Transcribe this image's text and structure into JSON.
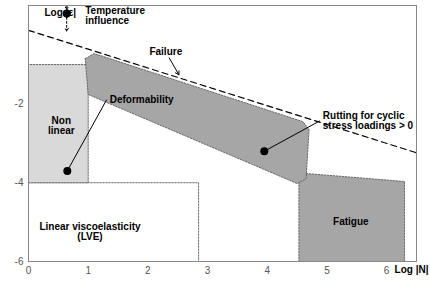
{
  "chart_data": {
    "type": "region",
    "x_label": "Log |N|",
    "y_label": "Log |ε|",
    "xlim": [
      0,
      6.5
    ],
    "ylim": [
      -6,
      0.5
    ],
    "xticks": [
      0,
      1,
      2,
      3,
      4,
      5,
      6
    ],
    "yticks": [
      -6,
      -4,
      -2
    ],
    "regions": [
      {
        "name": "Linear viscoelasticity\n(LVE)",
        "color": "#ffffff",
        "label_at": [
          1.03,
          -5.25
        ],
        "points": [
          [
            0,
            -6
          ],
          [
            0,
            -4
          ],
          [
            2.85,
            -4
          ],
          [
            2.85,
            -6
          ]
        ]
      },
      {
        "name": "Non\nlinear",
        "color": "#d9d9d9",
        "label_at": [
          0.55,
          -2.56
        ],
        "points": [
          [
            0,
            -4
          ],
          [
            0,
            -1.0
          ],
          [
            1.0,
            -1.0
          ],
          [
            1.0,
            -4
          ]
        ]
      },
      {
        "name": "Fatigue",
        "color": "#a6a6a6",
        "label_at": [
          5.4,
          -5.0
        ],
        "points": [
          [
            4.53,
            -6
          ],
          [
            4.53,
            -3.75
          ],
          [
            6.3,
            -3.97
          ],
          [
            6.3,
            -6
          ]
        ]
      },
      {
        "color": "#a6a6a6",
        "points": [
          [
            0.95,
            -0.85
          ],
          [
            1.1,
            -0.72
          ],
          [
            4.6,
            -2.45
          ],
          [
            4.7,
            -2.65
          ],
          [
            4.65,
            -3.9
          ],
          [
            4.5,
            -4.02
          ],
          [
            1.0,
            -1.76
          ]
        ]
      }
    ],
    "lines": [
      {
        "color": "#000000",
        "line_style": "dashed",
        "points": [
          [
            0,
            -0.13
          ],
          [
            6.5,
            -3.24
          ]
        ]
      }
    ],
    "annotations": [
      {
        "text": "Temperature\ninfluence",
        "x": 0.9,
        "y": 0.25,
        "point": [
          0.64,
          0.3
        ],
        "marker": "dot",
        "arrow_y": [
          -0.15,
          0.5
        ]
      },
      {
        "text": "Failure",
        "x": 2.3,
        "y": -0.68,
        "point": [
          2.52,
          -1.26
        ],
        "marker": "arrow"
      },
      {
        "text": "Deformability",
        "x": 1.31,
        "y": -1.89,
        "point": [
          0.65,
          -3.7
        ],
        "marker": "dot"
      },
      {
        "text": "Rutting for cyclic\nstress loadings > 0",
        "x": 4.88,
        "y": -2.43,
        "point": [
          3.95,
          -3.2
        ],
        "marker": "dot"
      }
    ]
  }
}
